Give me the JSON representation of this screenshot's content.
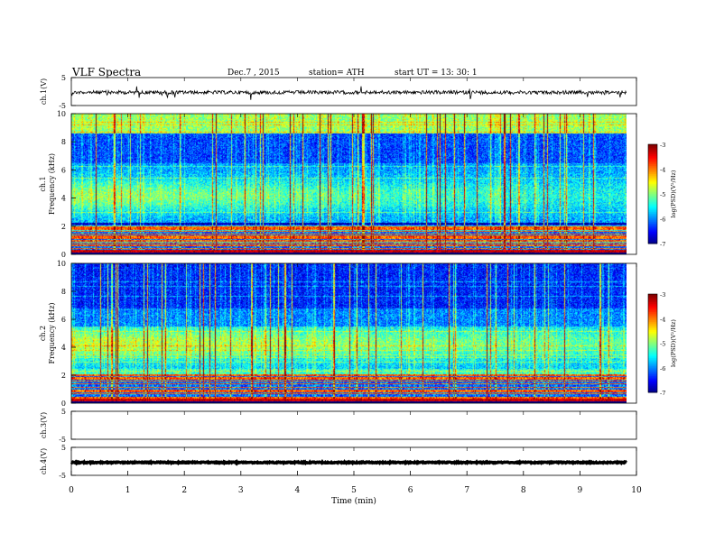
{
  "chart_data": {
    "type": "heatmap",
    "title": "VLF  Spectra",
    "date": "Dec.7  , 2015",
    "station": "station= ATH",
    "start_ut": "start  UT  =    13: 30: 1",
    "xlabel": "Time  (min)",
    "xlim": [
      0,
      10
    ],
    "x_ticks": [
      "0",
      "1",
      "2",
      "3",
      "4",
      "5",
      "6",
      "7",
      "8",
      "9",
      "10"
    ],
    "panels": [
      {
        "label": "ch.1(V)",
        "type": "waveform",
        "ylim": [
          -5,
          5
        ],
        "y_ticks": [
          "5",
          "-5"
        ],
        "trace": "noisy",
        "level": -0.3
      },
      {
        "label": "ch.1\nFrequency  (kHz)",
        "type": "spectrogram",
        "ylim": [
          0,
          10
        ],
        "y_ticks": [
          "0",
          "2",
          "4",
          "6",
          "8",
          "10"
        ],
        "channel": 1
      },
      {
        "label": "ch.2\nFrequency  (kHz)",
        "type": "spectrogram",
        "ylim": [
          0,
          10
        ],
        "y_ticks": [
          "0",
          "2",
          "4",
          "6",
          "8",
          "10"
        ],
        "channel": 2
      },
      {
        "label": "ch.3(V)",
        "type": "waveform",
        "ylim": [
          -5,
          5
        ],
        "y_ticks": [
          "5",
          "-5"
        ],
        "trace": "flat"
      },
      {
        "label": "ch.4(V)",
        "type": "waveform",
        "ylim": [
          -5,
          5
        ],
        "y_ticks": [
          "5",
          "-5"
        ],
        "trace": "thick",
        "level": -0.4
      }
    ],
    "colorbar": {
      "label": "log(PSD)(V²/Hz)",
      "range": [
        -7,
        -3
      ],
      "ticks": [
        "-3",
        "-4",
        "-5",
        "-6",
        "-7"
      ],
      "colormap": "jet"
    }
  }
}
